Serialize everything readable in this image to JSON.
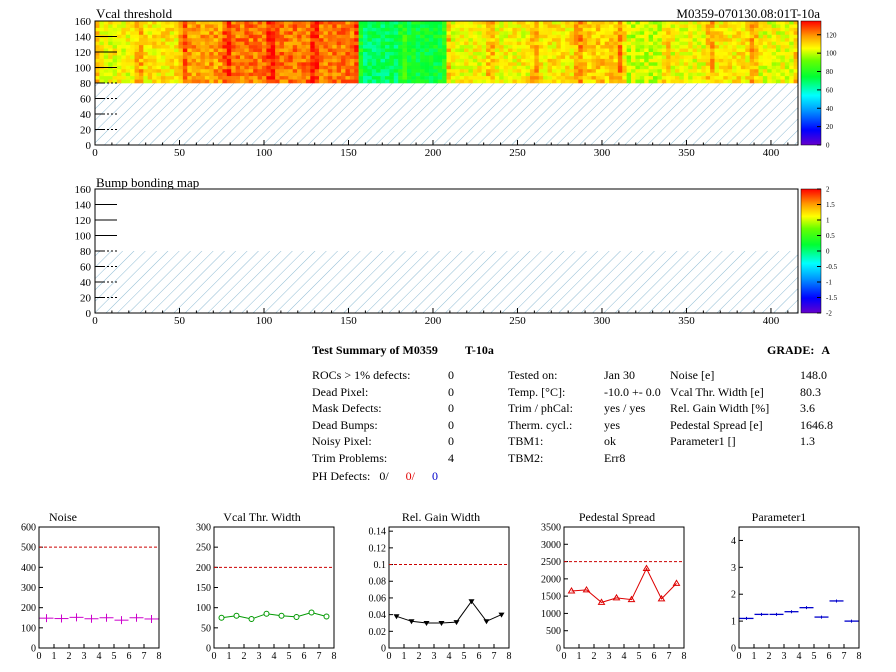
{
  "header": {
    "map_title": "Vcal threshold",
    "module_id": "M0359-070130.08:01T-10a",
    "bump_title": "Bump bonding map"
  },
  "colors": {
    "hatch": "#8fbcd4",
    "limit_line": "#cc0000",
    "noise": "#cc00cc",
    "vcal": "#009900",
    "gain": "#000000",
    "pedestal": "#dd0000",
    "param1": "#0000cc"
  },
  "summary": {
    "title": "Test Summary of M0359",
    "test_label": "T-10a",
    "grade_label": "GRADE:",
    "grade_value": "A",
    "left_rows": [
      {
        "label": "ROCs > 1% defects:",
        "value": "0"
      },
      {
        "label": "Dead Pixel:",
        "value": "0"
      },
      {
        "label": "Mask Defects:",
        "value": "0"
      },
      {
        "label": "Dead Bumps:",
        "value": "0"
      },
      {
        "label": "Noisy Pixel:",
        "value": "0"
      },
      {
        "label": "Trim Problems:",
        "value": "4"
      }
    ],
    "ph_defects": {
      "label": "PH Defects:",
      "v1": "0/",
      "v2": "0/",
      "v3": "0"
    },
    "mid_rows": [
      {
        "label": "Tested on:",
        "value": "Jan 30"
      },
      {
        "label": "Temp. [°C]:",
        "value": "-10.0 +- 0.0"
      },
      {
        "label": "Trim / phCal:",
        "value": "yes / yes"
      },
      {
        "label": "Therm. cycl.:",
        "value": "yes"
      },
      {
        "label": "TBM1:",
        "value": "ok"
      },
      {
        "label": "TBM2:",
        "value": "Err8"
      }
    ],
    "right_rows": [
      {
        "label": "Noise [e]",
        "value": "148.0"
      },
      {
        "label": "Vcal Thr. Width [e]",
        "value": "80.3"
      },
      {
        "label": "Rel. Gain Width [%]",
        "value": "3.6"
      },
      {
        "label": "Pedestal Spread [e]",
        "value": "1646.8"
      },
      {
        "label": "Parameter1 []",
        "value": "1.3"
      }
    ]
  },
  "chart_data": [
    {
      "type": "heatmap",
      "title": "Vcal threshold",
      "xlim": [
        0,
        416
      ],
      "ylim": [
        0,
        160
      ],
      "x_ticks": [
        0,
        50,
        100,
        150,
        200,
        250,
        300,
        350,
        400
      ],
      "y_ticks": [
        0,
        20,
        40,
        60,
        80,
        100,
        120,
        140,
        160
      ],
      "z_ticks": [
        0,
        20,
        40,
        60,
        80,
        100,
        120
      ],
      "z_range": [
        0,
        135
      ],
      "filled_rows": [
        80,
        160
      ],
      "roc_columns_mean": [
        105,
        108,
        118,
        122,
        123,
        122,
        70,
        75,
        105,
        106,
        108,
        112,
        100,
        104,
        108,
        104
      ],
      "hatched_region": "rows 0-80"
    },
    {
      "type": "heatmap",
      "title": "Bump bonding map",
      "xlim": [
        0,
        416
      ],
      "ylim": [
        0,
        160
      ],
      "x_ticks": [
        0,
        50,
        100,
        150,
        200,
        250,
        300,
        350,
        400
      ],
      "y_ticks": [
        0,
        20,
        40,
        60,
        80,
        100,
        120,
        140,
        160
      ],
      "z_ticks": [
        -2,
        -1.5,
        -1,
        -0.5,
        0,
        0.5,
        1,
        1.5,
        2
      ],
      "z_tick_labels": [
        "-2",
        "-1.5",
        "-1",
        "-0.5",
        "0",
        "0.5",
        "1",
        "1.5",
        "2"
      ],
      "z_range": [
        -2,
        2
      ],
      "hatched_region": "rows 0-80"
    },
    {
      "type": "line",
      "title": "Noise",
      "x": [
        0.5,
        1.5,
        2.5,
        3.5,
        4.5,
        5.5,
        6.5,
        7.5
      ],
      "values": [
        148,
        146,
        152,
        145,
        150,
        138,
        150,
        144
      ],
      "xlim": [
        0,
        8
      ],
      "ylim": [
        0,
        600
      ],
      "x_ticks": [
        0,
        1,
        2,
        3,
        4,
        5,
        6,
        7,
        8
      ],
      "y_ticks": [
        0,
        100,
        200,
        300,
        400,
        500,
        600
      ],
      "limit": 500,
      "marker": "cross",
      "connected": false
    },
    {
      "type": "line",
      "title": "Vcal Thr. Width",
      "x": [
        0.5,
        1.5,
        2.5,
        3.5,
        4.5,
        5.5,
        6.5,
        7.5
      ],
      "values": [
        75,
        80,
        72,
        85,
        80,
        77,
        88,
        78
      ],
      "xlim": [
        0,
        8
      ],
      "ylim": [
        0,
        300
      ],
      "x_ticks": [
        0,
        1,
        2,
        3,
        4,
        5,
        6,
        7,
        8
      ],
      "y_ticks": [
        0,
        50,
        100,
        150,
        200,
        250,
        300
      ],
      "limit": 200,
      "marker": "circle",
      "connected": true
    },
    {
      "type": "line",
      "title": "Rel. Gain Width",
      "x": [
        0.5,
        1.5,
        2.5,
        3.5,
        4.5,
        5.5,
        6.5,
        7.5
      ],
      "values": [
        0.038,
        0.032,
        0.03,
        0.03,
        0.031,
        0.056,
        0.032,
        0.04
      ],
      "xlim": [
        0,
        8
      ],
      "ylim": [
        0,
        0.145
      ],
      "x_ticks": [
        0,
        1,
        2,
        3,
        4,
        5,
        6,
        7,
        8
      ],
      "y_ticks": [
        0,
        0.02,
        0.04,
        0.06,
        0.08,
        0.1,
        0.12,
        0.14
      ],
      "y_tick_labels": [
        "0",
        "0.02",
        "0.04",
        "0.06",
        "0.08",
        "0.1",
        "0.12",
        "0.14"
      ],
      "limit": 0.1,
      "marker": "triangle-down",
      "connected": true
    },
    {
      "type": "line",
      "title": "Pedestal Spread",
      "x": [
        0.5,
        1.5,
        2.5,
        3.5,
        4.5,
        5.5,
        6.5,
        7.5
      ],
      "values": [
        1650,
        1680,
        1320,
        1450,
        1400,
        2300,
        1420,
        1870
      ],
      "xlim": [
        0,
        8
      ],
      "ylim": [
        0,
        3500
      ],
      "x_ticks": [
        0,
        1,
        2,
        3,
        4,
        5,
        6,
        7,
        8
      ],
      "y_ticks": [
        0,
        500,
        1000,
        1500,
        2000,
        2500,
        3000,
        3500
      ],
      "limit": 2500,
      "marker": "triangle-up",
      "connected": true
    },
    {
      "type": "line",
      "title": "Parameter1",
      "x": [
        0.5,
        1.5,
        2.5,
        3.5,
        4.5,
        5.5,
        6.5,
        7.5
      ],
      "values": [
        1.1,
        1.25,
        1.25,
        1.35,
        1.5,
        1.15,
        1.75,
        1.0
      ],
      "xlim": [
        0,
        8
      ],
      "ylim": [
        0,
        4.5
      ],
      "x_ticks": [
        0,
        1,
        2,
        3,
        4,
        5,
        6,
        7,
        8
      ],
      "y_ticks": [
        0,
        1,
        2,
        3,
        4
      ],
      "limit": null,
      "marker": "hbar",
      "connected": false
    }
  ]
}
